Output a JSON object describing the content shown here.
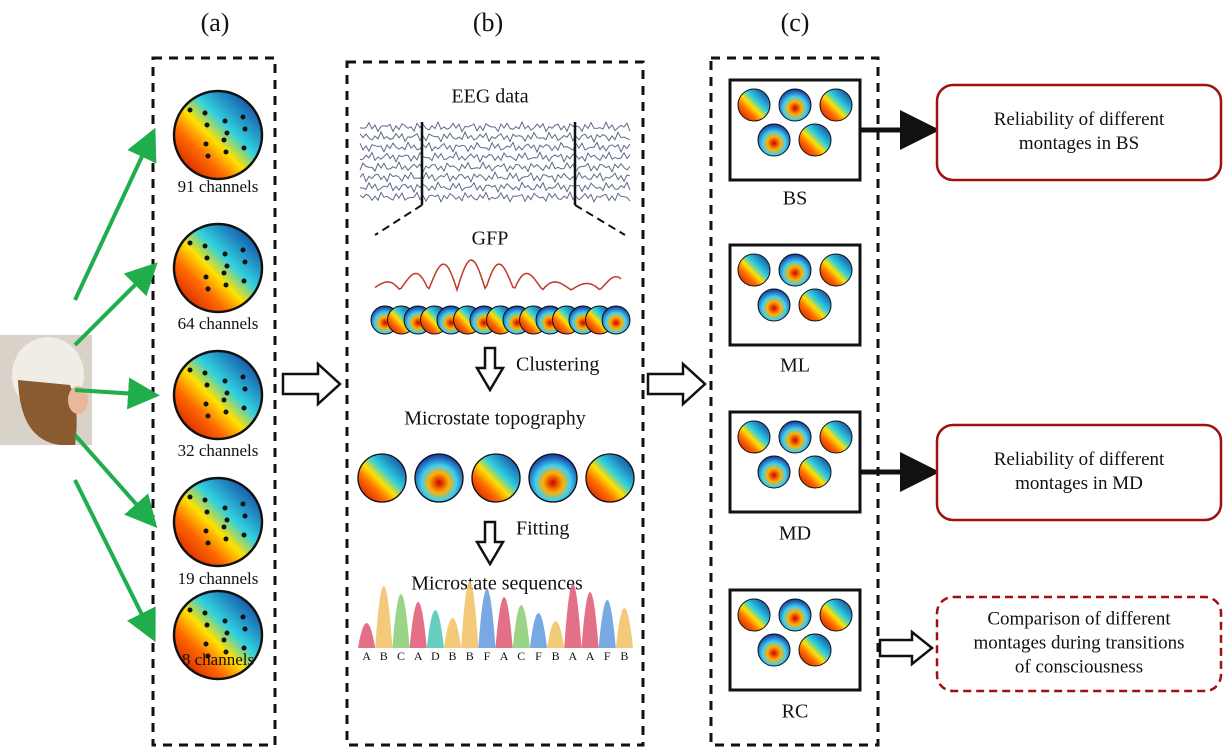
{
  "panels": [
    "(a)",
    "(b)",
    "(c)"
  ],
  "channels": [
    "91 channels",
    "64 channels",
    "32 channels",
    "19 channels",
    "8 channels"
  ],
  "pipeline": {
    "eeg": "EEG data",
    "gfp": "GFP",
    "clustering": "Clustering",
    "topography": "Microstate topography",
    "fitting": "Fitting",
    "sequences": "Microstate sequences",
    "sequence_letters": [
      "A",
      "B",
      "C",
      "A",
      "D",
      "B",
      "B",
      "F",
      "A",
      "C",
      "F",
      "B",
      "A",
      "A",
      "F",
      "B"
    ]
  },
  "groups": [
    "BS",
    "ML",
    "MD",
    "RC"
  ],
  "outcomes": [
    {
      "lines": [
        "Reliability of different",
        "montages in BS"
      ]
    },
    {
      "lines": [
        "Reliability of different",
        "montages in MD"
      ]
    },
    {
      "lines": [
        "Comparison of different",
        "montages during transitions",
        "of consciousness"
      ]
    }
  ]
}
